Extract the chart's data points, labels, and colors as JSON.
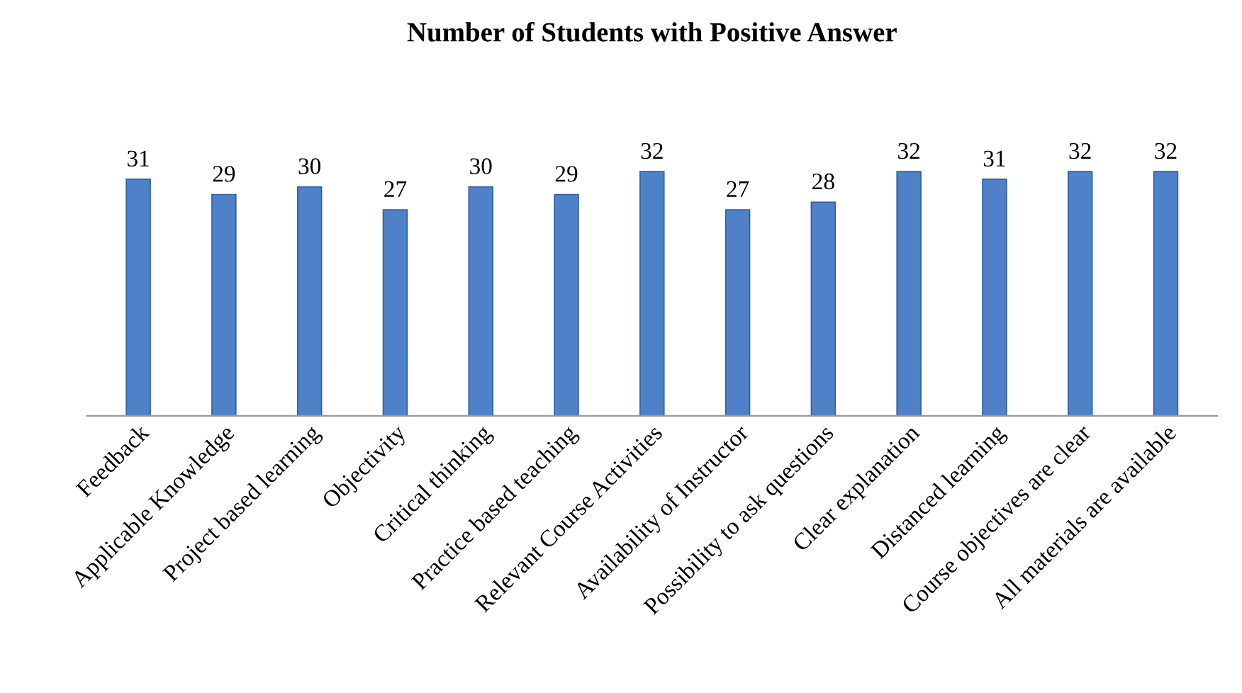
{
  "chart_data": {
    "type": "bar",
    "title": "Number of Students with Positive Answer",
    "categories": [
      "Feedback",
      "Applicable Knowledge",
      "Project based learning",
      "Objectivity",
      "Critical thinking",
      "Practice based teaching",
      "Relevant Course Activities",
      "Availability of Instructor",
      "Possibility to ask questions",
      "Clear explanation",
      "Distanced learning",
      "Course objectives are clear",
      "All materials are available"
    ],
    "values": [
      31,
      29,
      30,
      27,
      30,
      29,
      32,
      27,
      28,
      32,
      31,
      32,
      32
    ],
    "color": "#4f81c9",
    "data_labels": true,
    "grid": false,
    "legend": false,
    "tick_labels": "x"
  }
}
